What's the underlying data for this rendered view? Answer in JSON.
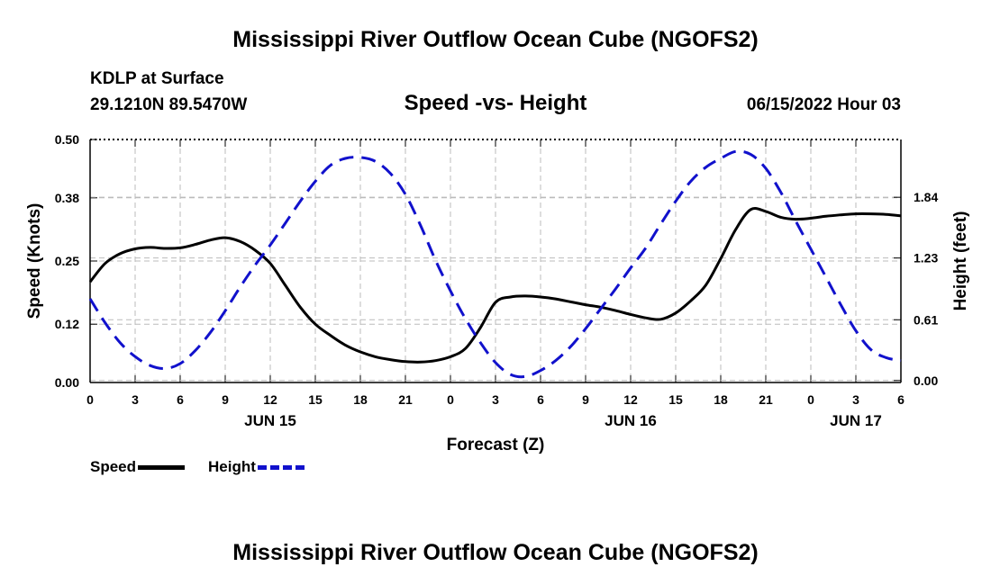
{
  "page": {
    "title": "Mississippi River Outflow Ocean Cube (NGOFS2)",
    "footer_title": "Mississippi River Outflow Ocean Cube (NGOFS2)",
    "station": "KDLP at Surface",
    "coords": "29.1210N  89.5470W",
    "subtitle": "Speed -vs- Height",
    "datetime": "06/15/2022 Hour 03"
  },
  "legend": {
    "speed": "Speed",
    "height": "Height"
  },
  "colors": {
    "speed": "#000000",
    "height": "#1111cc",
    "grid": "#bbbbbb"
  },
  "chart_data": {
    "type": "line",
    "title": "Speed -vs- Height",
    "xlabel": "Forecast (Z)",
    "ylabel": "Speed (Knots)",
    "y2label": "Height (feet)",
    "x_hours_range": [
      0,
      54
    ],
    "x_tick_hours": [
      0,
      3,
      6,
      9,
      12,
      15,
      18,
      21,
      24,
      27,
      30,
      33,
      36,
      39,
      42,
      45,
      48,
      51,
      54
    ],
    "x_tick_labels": [
      "0",
      "3",
      "6",
      "9",
      "12",
      "15",
      "18",
      "21",
      "0",
      "3",
      "6",
      "9",
      "12",
      "15",
      "18",
      "21",
      "0",
      "3",
      "6"
    ],
    "day_labels": [
      {
        "hour": 12,
        "label": "JUN 15"
      },
      {
        "hour": 36,
        "label": "JUN 16"
      },
      {
        "hour": 51,
        "label": "JUN 17"
      }
    ],
    "y_range": [
      0,
      0.5
    ],
    "y_ticks": [
      0.0,
      0.12,
      0.25,
      0.38,
      0.5
    ],
    "y_tick_labels": [
      "0.00",
      "0.12",
      "0.25",
      "0.38",
      "0.50"
    ],
    "y2_range": [
      -0.02,
      2.42
    ],
    "y2_ticks": [
      0.0,
      0.61,
      1.23,
      1.84
    ],
    "y2_tick_labels": [
      "0.00",
      "0.61",
      "1.23",
      "1.84"
    ],
    "series": [
      {
        "name": "Speed",
        "axis": "left",
        "style": "solid",
        "x": [
          0,
          1,
          2,
          3,
          4,
          5,
          6,
          7,
          8,
          9,
          10,
          11,
          12,
          13,
          14,
          15,
          16,
          17,
          18,
          19,
          20,
          21,
          22,
          23,
          24,
          25,
          26,
          27,
          28,
          29,
          30,
          31,
          32,
          33,
          34,
          35,
          36,
          37,
          38,
          39,
          40,
          41,
          42,
          43,
          44,
          45,
          46,
          47,
          48,
          49,
          50,
          51,
          52,
          53,
          54
        ],
        "values": [
          0.207,
          0.245,
          0.265,
          0.275,
          0.278,
          0.276,
          0.277,
          0.284,
          0.293,
          0.298,
          0.29,
          0.272,
          0.245,
          0.2,
          0.155,
          0.12,
          0.097,
          0.077,
          0.063,
          0.053,
          0.047,
          0.043,
          0.042,
          0.045,
          0.053,
          0.07,
          0.113,
          0.165,
          0.176,
          0.178,
          0.176,
          0.172,
          0.166,
          0.16,
          0.155,
          0.148,
          0.14,
          0.133,
          0.13,
          0.143,
          0.168,
          0.2,
          0.255,
          0.315,
          0.356,
          0.352,
          0.34,
          0.336,
          0.338,
          0.342,
          0.345,
          0.347,
          0.347,
          0.346,
          0.343
        ]
      },
      {
        "name": "Height",
        "axis": "right",
        "style": "dashed",
        "x": [
          0,
          1,
          2,
          3,
          4,
          5,
          6,
          7,
          8,
          9,
          10,
          11,
          12,
          13,
          14,
          15,
          16,
          17,
          18,
          19,
          20,
          21,
          22,
          23,
          24,
          25,
          26,
          27,
          28,
          29,
          30,
          31,
          32,
          33,
          34,
          35,
          36,
          37,
          38,
          39,
          40,
          41,
          42,
          43,
          44,
          45,
          46,
          47,
          48,
          49,
          50,
          51,
          52,
          53,
          54
        ],
        "values": [
          0.82,
          0.58,
          0.38,
          0.24,
          0.15,
          0.12,
          0.17,
          0.3,
          0.48,
          0.7,
          0.94,
          1.16,
          1.36,
          1.58,
          1.8,
          2.0,
          2.16,
          2.23,
          2.24,
          2.2,
          2.08,
          1.87,
          1.56,
          1.21,
          0.9,
          0.62,
          0.38,
          0.18,
          0.06,
          0.04,
          0.1,
          0.2,
          0.34,
          0.52,
          0.72,
          0.92,
          1.13,
          1.33,
          1.57,
          1.8,
          2.0,
          2.14,
          2.23,
          2.3,
          2.27,
          2.13,
          1.89,
          1.6,
          1.32,
          1.04,
          0.76,
          0.5,
          0.31,
          0.23,
          0.2
        ]
      }
    ]
  }
}
